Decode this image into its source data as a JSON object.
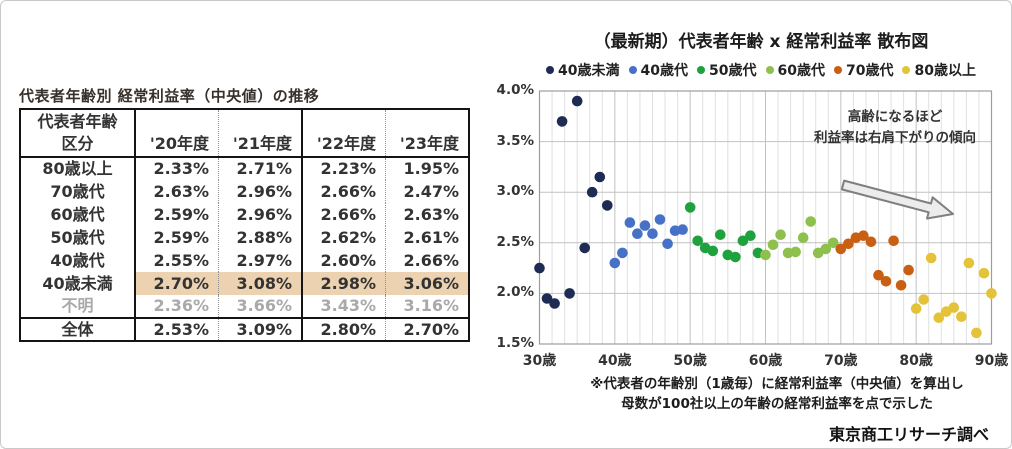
{
  "table": {
    "title": "代表者年齢別 経常利益率（中央値）の推移",
    "header": {
      "col1_line1": "代表者年齢",
      "col1_line2": "区分",
      "years": [
        "'20年度",
        "'21年度",
        "'22年度",
        "'23年度"
      ]
    },
    "rows": [
      {
        "label": "80歳以上",
        "values": [
          "2.33%",
          "2.71%",
          "2.23%",
          "1.95%"
        ]
      },
      {
        "label": "70歳代",
        "values": [
          "2.63%",
          "2.96%",
          "2.66%",
          "2.47%"
        ]
      },
      {
        "label": "60歳代",
        "values": [
          "2.59%",
          "2.96%",
          "2.66%",
          "2.63%"
        ]
      },
      {
        "label": "50歳代",
        "values": [
          "2.59%",
          "2.88%",
          "2.62%",
          "2.61%"
        ]
      },
      {
        "label": "40歳代",
        "values": [
          "2.55%",
          "2.97%",
          "2.60%",
          "2.66%"
        ]
      },
      {
        "label": "40歳未満",
        "values": [
          "2.70%",
          "3.08%",
          "2.98%",
          "3.06%"
        ]
      },
      {
        "label": "不明",
        "values": [
          "2.36%",
          "3.66%",
          "3.43%",
          "3.16%"
        ]
      },
      {
        "label": "全体",
        "values": [
          "2.53%",
          "3.09%",
          "2.80%",
          "2.70%"
        ]
      }
    ],
    "highlight_row_color": "#ecd2b0",
    "muted_text_color": "#a9a9a9"
  },
  "chart": {
    "title": "（最新期）代表者年齢 x 経常利益率 散布図",
    "annotation": {
      "line1": "高齢になるほど",
      "line2": "利益率は右肩下がりの傾向"
    },
    "note_line1": "※代表者の年齢別（1歳毎）に経常利益率（中央値）を算出し",
    "note_line2": "母数が100社以上の年齢の経常利益率を点で示した",
    "credit": "東京商工リサーチ調べ"
  },
  "chart_data": {
    "type": "scatter",
    "title": "（最新期）代表者年齢 x 経常利益率 散布図",
    "xlabel": "代表者年齢",
    "ylabel": "経常利益率",
    "xlim": [
      30,
      90
    ],
    "ylim": [
      1.5,
      4.0
    ],
    "grid": {
      "y_major_step": 0.5,
      "x_major_step_years": 10,
      "x_minor_divisions_per_major": 6,
      "grid_on": true
    },
    "legend_position": "top",
    "x_ticks": [
      [
        30,
        "30歳"
      ],
      [
        40,
        "40歳"
      ],
      [
        50,
        "50歳"
      ],
      [
        60,
        "60歳"
      ],
      [
        70,
        "70歳"
      ],
      [
        80,
        "80歳"
      ],
      [
        90,
        "90歳"
      ]
    ],
    "y_ticks": [
      [
        4.0,
        "4.0%"
      ],
      [
        3.5,
        "3.5%"
      ],
      [
        3.0,
        "3.0%"
      ],
      [
        2.5,
        "2.5%"
      ],
      [
        2.0,
        "2.0%"
      ],
      [
        1.5,
        "1.5%"
      ]
    ],
    "series": [
      {
        "name": "40歳未満",
        "color": "#1e2c54",
        "points": [
          [
            30,
            2.25
          ],
          [
            31,
            1.95
          ],
          [
            32,
            1.9
          ],
          [
            33,
            3.7
          ],
          [
            34,
            2.0
          ],
          [
            35,
            3.9
          ],
          [
            36,
            2.45
          ],
          [
            37,
            3.0
          ],
          [
            38,
            3.15
          ],
          [
            39,
            2.87
          ]
        ]
      },
      {
        "name": "40歳代",
        "color": "#4671c6",
        "points": [
          [
            40,
            2.3
          ],
          [
            41,
            2.4
          ],
          [
            42,
            2.7
          ],
          [
            43,
            2.59
          ],
          [
            44,
            2.67
          ],
          [
            45,
            2.59
          ],
          [
            46,
            2.73
          ],
          [
            47,
            2.49
          ],
          [
            48,
            2.62
          ],
          [
            49,
            2.63
          ]
        ]
      },
      {
        "name": "50歳代",
        "color": "#1fa23e",
        "points": [
          [
            50,
            2.85
          ],
          [
            51,
            2.52
          ],
          [
            52,
            2.45
          ],
          [
            53,
            2.42
          ],
          [
            54,
            2.58
          ],
          [
            55,
            2.38
          ],
          [
            56,
            2.36
          ],
          [
            57,
            2.52
          ],
          [
            58,
            2.57
          ],
          [
            59,
            2.4
          ]
        ]
      },
      {
        "name": "60歳代",
        "color": "#8ec04d",
        "points": [
          [
            60,
            2.38
          ],
          [
            61,
            2.48
          ],
          [
            62,
            2.58
          ],
          [
            63,
            2.4
          ],
          [
            64,
            2.41
          ],
          [
            65,
            2.55
          ],
          [
            66,
            2.71
          ],
          [
            67,
            2.4
          ],
          [
            68,
            2.44
          ],
          [
            69,
            2.5
          ]
        ]
      },
      {
        "name": "70歳代",
        "color": "#c85f12",
        "points": [
          [
            70,
            2.44
          ],
          [
            71,
            2.49
          ],
          [
            72,
            2.55
          ],
          [
            73,
            2.57
          ],
          [
            74,
            2.51
          ],
          [
            75,
            2.18
          ],
          [
            76,
            2.12
          ],
          [
            77,
            2.52
          ],
          [
            78,
            2.08
          ],
          [
            79,
            2.23
          ]
        ]
      },
      {
        "name": "80歳以上",
        "color": "#e4c339",
        "points": [
          [
            80,
            1.85
          ],
          [
            81,
            1.94
          ],
          [
            82,
            2.35
          ],
          [
            83,
            1.76
          ],
          [
            84,
            1.82
          ],
          [
            85,
            1.86
          ],
          [
            86,
            1.77
          ],
          [
            87,
            2.3
          ],
          [
            88,
            1.61
          ],
          [
            89,
            2.2
          ],
          [
            90,
            2.0
          ]
        ]
      }
    ]
  }
}
